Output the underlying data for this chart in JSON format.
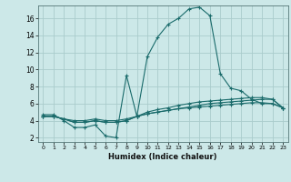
{
  "xlabel": "Humidex (Indice chaleur)",
  "ylabel": "",
  "bg_color": "#cce8e8",
  "plot_bg_color": "#cce8e8",
  "grid_color": "#aacccc",
  "line_color": "#1a6b6b",
  "xlim": [
    -0.5,
    23.5
  ],
  "ylim": [
    1.5,
    17.5
  ],
  "xticks": [
    0,
    1,
    2,
    3,
    4,
    5,
    6,
    7,
    8,
    9,
    10,
    11,
    12,
    13,
    14,
    15,
    16,
    17,
    18,
    19,
    20,
    21,
    22,
    23
  ],
  "yticks": [
    2,
    4,
    6,
    8,
    10,
    12,
    14,
    16
  ],
  "line1_x": [
    0,
    1,
    2,
    3,
    4,
    5,
    6,
    7,
    8,
    9,
    10,
    11,
    12,
    13,
    14,
    15,
    16,
    17,
    18,
    19,
    20,
    21,
    22,
    23
  ],
  "line1_y": [
    4.7,
    4.7,
    4.0,
    3.2,
    3.2,
    3.5,
    2.2,
    2.0,
    9.3,
    4.5,
    11.5,
    13.8,
    15.3,
    16.0,
    17.1,
    17.3,
    16.3,
    9.5,
    7.8,
    7.5,
    6.5,
    6.0,
    6.0,
    5.5
  ],
  "line2_x": [
    0,
    1,
    2,
    3,
    4,
    5,
    6,
    7,
    8,
    9,
    10,
    11,
    12,
    13,
    14,
    15,
    16,
    17,
    18,
    19,
    20,
    21,
    22,
    23
  ],
  "line2_y": [
    4.5,
    4.5,
    4.2,
    3.8,
    3.8,
    4.0,
    3.8,
    3.8,
    4.0,
    4.5,
    5.0,
    5.3,
    5.5,
    5.8,
    6.0,
    6.2,
    6.3,
    6.4,
    6.5,
    6.6,
    6.7,
    6.7,
    6.5,
    5.5
  ],
  "line3_x": [
    0,
    1,
    2,
    3,
    4,
    5,
    6,
    7,
    8,
    9,
    10,
    11,
    12,
    13,
    14,
    15,
    16,
    17,
    18,
    19,
    20,
    21,
    22,
    23
  ],
  "line3_y": [
    4.5,
    4.5,
    4.2,
    3.8,
    3.8,
    4.0,
    3.8,
    3.8,
    4.0,
    4.5,
    4.8,
    5.0,
    5.2,
    5.4,
    5.6,
    5.8,
    6.0,
    6.1,
    6.2,
    6.3,
    6.4,
    6.5,
    6.5,
    5.5
  ],
  "line4_x": [
    0,
    1,
    2,
    3,
    4,
    5,
    6,
    7,
    8,
    9,
    10,
    11,
    12,
    13,
    14,
    15,
    16,
    17,
    18,
    19,
    20,
    21,
    22,
    23
  ],
  "line4_y": [
    4.5,
    4.5,
    4.2,
    4.0,
    4.0,
    4.2,
    4.0,
    4.0,
    4.2,
    4.5,
    4.8,
    5.0,
    5.2,
    5.4,
    5.5,
    5.6,
    5.7,
    5.8,
    5.9,
    6.0,
    6.1,
    6.1,
    6.0,
    5.5
  ]
}
